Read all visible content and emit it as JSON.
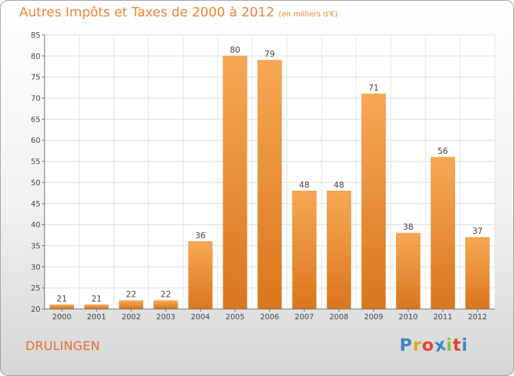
{
  "title": "Autres Impôts et Taxes de 2000 à 2012",
  "unit": "(en milliers d'€)",
  "town": "DRULINGEN",
  "logo": {
    "letters": [
      "P",
      "r",
      "o",
      "x",
      "i",
      "t",
      "i"
    ],
    "colors": [
      "#3a86c8",
      "#e8a21e",
      "#e6402e",
      "#3a86c8",
      "#8cc43c",
      "#e6402e",
      "#3a86c8"
    ]
  },
  "colors": {
    "bar_light": "#f7a853",
    "bar_dark": "#d9761f",
    "title": "#ee8433"
  },
  "chart_data": {
    "type": "bar",
    "title": "Autres Impôts et Taxes de 2000 à 2012",
    "categories": [
      "2000",
      "2001",
      "2002",
      "2003",
      "2004",
      "2005",
      "2006",
      "2007",
      "2008",
      "2009",
      "2010",
      "2011",
      "2012"
    ],
    "values": [
      21,
      21,
      22,
      22,
      36,
      80,
      79,
      48,
      48,
      71,
      38,
      56,
      37
    ],
    "ylim": [
      20,
      85
    ],
    "yticks": [
      20,
      25,
      30,
      35,
      40,
      45,
      50,
      55,
      60,
      65,
      70,
      75,
      80,
      85
    ],
    "grid": true,
    "data_labels": true
  }
}
